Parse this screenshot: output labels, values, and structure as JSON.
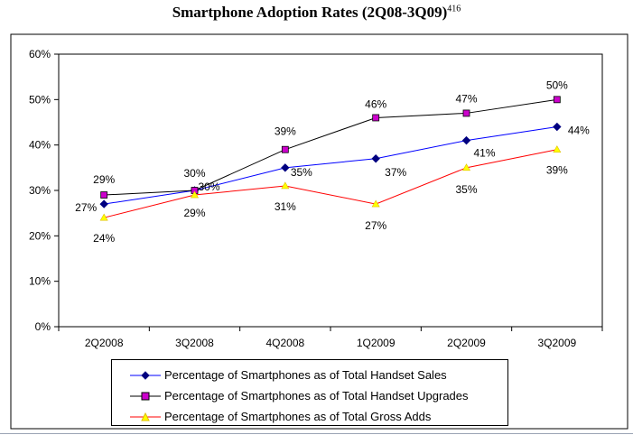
{
  "chart_data": {
    "type": "line",
    "title": "Smartphone Adoption Rates (2Q08-3Q09)",
    "title_superscript": "416",
    "categories": [
      "2Q2008",
      "3Q2008",
      "4Q2008",
      "1Q2009",
      "2Q2009",
      "3Q2009"
    ],
    "ylim": [
      0,
      60
    ],
    "yticks": [
      "0%",
      "10%",
      "20%",
      "30%",
      "40%",
      "50%",
      "60%"
    ],
    "grid": false,
    "legend_position": "bottom",
    "series": [
      {
        "name": "Percentage of Smartphones as of Total Handset Sales",
        "values": [
          27,
          30,
          35,
          37,
          41,
          44
        ],
        "labels": [
          "27%",
          "30%",
          "35%",
          "37%",
          "41%",
          "44%"
        ],
        "color": "#0000ff",
        "marker_color": "#000080",
        "marker": "diamond"
      },
      {
        "name": "Percentage of Smartphones as of Total Handset Upgrades",
        "values": [
          29,
          30,
          39,
          46,
          47,
          50
        ],
        "labels": [
          "29%",
          "30%",
          "39%",
          "46%",
          "47%",
          "50%"
        ],
        "color": "#000000",
        "marker_color": "#cc00cc",
        "marker": "square"
      },
      {
        "name": "Percentage of Smartphones as of Total Gross Adds",
        "values": [
          24,
          29,
          31,
          27,
          35,
          39
        ],
        "labels": [
          "24%",
          "29%",
          "31%",
          "27%",
          "35%",
          "39%"
        ],
        "color": "#ff0000",
        "marker_color": "#ffff00",
        "marker": "triangle"
      }
    ]
  }
}
